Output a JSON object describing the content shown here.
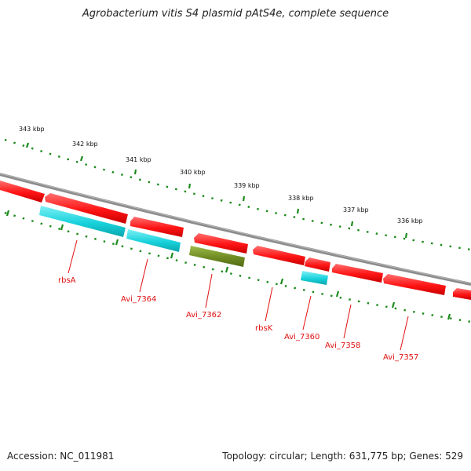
{
  "title": "Agrobacterium vitis S4 plasmid pAtS4e, complete sequence",
  "footer": {
    "accession": "Accession: NC_011981",
    "summary": "Topology: circular; Length: 631,775 bp; Genes: 529"
  },
  "scale_ticks": [
    {
      "label": "343 kbp"
    },
    {
      "label": "342 kbp"
    },
    {
      "label": "341 kbp"
    },
    {
      "label": "340 kbp"
    },
    {
      "label": "339 kbp"
    },
    {
      "label": "338 kbp"
    },
    {
      "label": "337 kbp"
    },
    {
      "label": "336 kbp"
    }
  ],
  "genes": [
    {
      "label": "rbsA"
    },
    {
      "label": "Avi_7364"
    },
    {
      "label": "Avi_7362"
    },
    {
      "label": "rbsK"
    },
    {
      "label": "Avi_7360"
    },
    {
      "label": "Avi_7358"
    },
    {
      "label": "Avi_7357"
    }
  ],
  "colors": {
    "forward_strand_gene": "#ff1a1a",
    "reverse_strand_cyan": "#18d2dc",
    "reverse_strand_olive": "#6f8c23",
    "backbone": "#8c8c8c",
    "scale_dots": "#1a8a1a",
    "label_red": "#e01010"
  }
}
